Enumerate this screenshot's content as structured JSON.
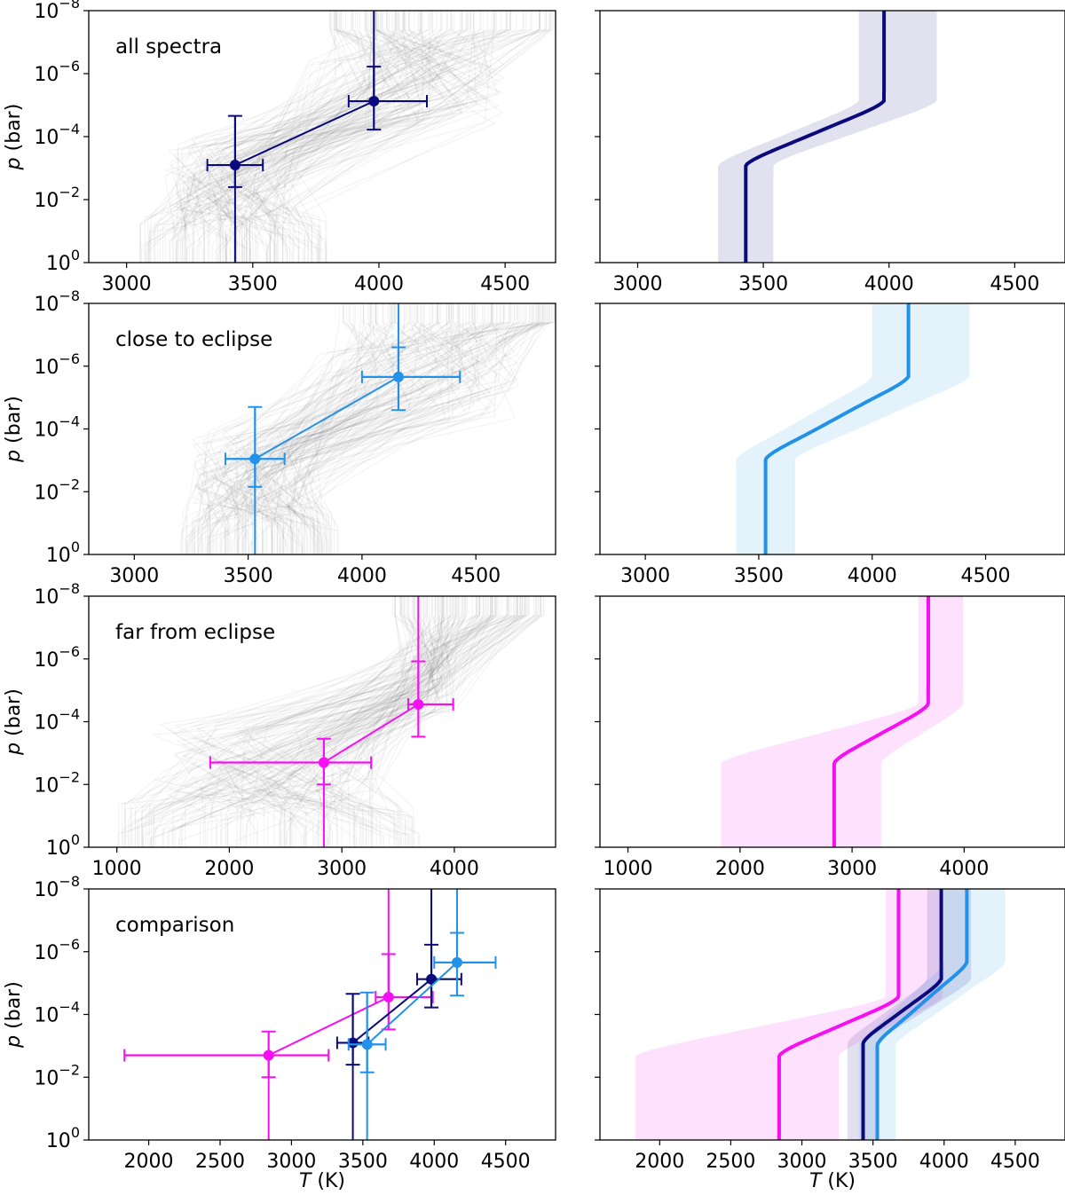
{
  "colors": {
    "all": "#0a0a7d",
    "close": "#2191ea",
    "far": "#f60ff2",
    "samples": "#444444"
  },
  "axis_labels": {
    "ylabel_var": "p",
    "ylabel_unit": " (bar)",
    "xlabel_var": "T",
    "xlabel_unit": " (K)"
  },
  "chart_data": [
    {
      "id": "panel-all-left",
      "type": "scatter",
      "annotation": "all spectra",
      "annotation_color": "all",
      "yscale": "log",
      "ylim": [
        1,
        1e-08
      ],
      "yticks": [
        "10^-8",
        "10^-6",
        "10^-4",
        "10^-2",
        "10^0"
      ],
      "ytick_labels_visible": true,
      "xlim": [
        2850,
        4700
      ],
      "xticks": [
        3000,
        3500,
        4000,
        4500
      ],
      "samples": {
        "shown": true,
        "bottom_T": [
          3050,
          3800
        ],
        "top_T": [
          3800,
          4700
        ],
        "T_mid_low": [
          3150,
          3700
        ],
        "T_mid_high": [
          3700,
          4500
        ]
      },
      "series": [
        {
          "color": "all",
          "points": [
            {
              "T": 3430,
              "T_lo": 3320,
              "T_hi": 3540,
              "p": 0.0008,
              "p_lo": 0.004,
              "p_hi": 2.2e-05
            },
            {
              "T": 3980,
              "T_lo": 3880,
              "T_hi": 4190,
              "p": 7.5e-06,
              "p_lo": 6e-05,
              "p_hi": 6e-07
            }
          ]
        }
      ]
    },
    {
      "id": "panel-all-right",
      "type": "area",
      "yscale": "log",
      "ylim": [
        1,
        1e-08
      ],
      "ytick_labels_visible": false,
      "xlim": [
        2850,
        4700
      ],
      "xticks": [
        3000,
        3500,
        4000,
        4500
      ],
      "profiles": [
        {
          "color": "all",
          "T_bottom": 3430,
          "T_top": 3980,
          "p1": 0.0008,
          "p2": 7.5e-06,
          "band_bottom": [
            3320,
            3540
          ],
          "band_top": [
            3880,
            4190
          ]
        }
      ]
    },
    {
      "id": "panel-close-left",
      "type": "scatter",
      "annotation": "close to eclipse",
      "annotation_color": "close",
      "yscale": "log",
      "ylim": [
        1,
        1e-08
      ],
      "yticks": [
        "10^-8",
        "10^-6",
        "10^-4",
        "10^-2",
        "10^0"
      ],
      "ytick_labels_visible": true,
      "xlim": [
        2800,
        4850
      ],
      "xticks": [
        3000,
        3500,
        4000,
        4500
      ],
      "samples": {
        "shown": true,
        "bottom_T": [
          3200,
          3900
        ],
        "top_T": [
          3900,
          4850
        ],
        "T_mid_low": [
          3250,
          3800
        ],
        "T_mid_high": [
          3800,
          4700
        ]
      },
      "series": [
        {
          "color": "close",
          "points": [
            {
              "T": 3530,
              "T_lo": 3400,
              "T_hi": 3660,
              "p": 0.0009,
              "p_lo": 0.007,
              "p_hi": 2e-05
            },
            {
              "T": 4160,
              "T_lo": 4000,
              "T_hi": 4430,
              "p": 2.2e-06,
              "p_lo": 2.5e-05,
              "p_hi": 2.5e-07
            }
          ]
        }
      ]
    },
    {
      "id": "panel-close-right",
      "type": "area",
      "yscale": "log",
      "ylim": [
        1,
        1e-08
      ],
      "ytick_labels_visible": false,
      "xlim": [
        2800,
        4850
      ],
      "xticks": [
        3000,
        3500,
        4000,
        4500
      ],
      "profiles": [
        {
          "color": "close",
          "T_bottom": 3530,
          "T_top": 4160,
          "p1": 0.0009,
          "p2": 2.2e-06,
          "band_bottom": [
            3400,
            3660
          ],
          "band_top": [
            4000,
            4430
          ]
        }
      ]
    },
    {
      "id": "panel-far-left",
      "type": "scatter",
      "annotation": "far from eclipse",
      "annotation_color": "far",
      "yscale": "log",
      "ylim": [
        1,
        1e-08
      ],
      "yticks": [
        "10^-8",
        "10^-6",
        "10^-4",
        "10^-2",
        "10^0"
      ],
      "ytick_labels_visible": true,
      "xlim": [
        750,
        4900
      ],
      "xticks": [
        1000,
        2000,
        3000,
        4000
      ],
      "samples": {
        "shown": true,
        "bottom_T": [
          1000,
          3700
        ],
        "top_T": [
          3450,
          4800
        ],
        "T_mid_low": [
          1300,
          3400
        ],
        "T_mid_high": [
          3500,
          4000
        ]
      },
      "series": [
        {
          "color": "far",
          "points": [
            {
              "T": 2840,
              "T_lo": 1830,
              "T_hi": 3260,
              "p": 0.002,
              "p_lo": 0.01,
              "p_hi": 0.00035
            },
            {
              "T": 3680,
              "T_lo": 3590,
              "T_hi": 3990,
              "p": 2.8e-05,
              "p_lo": 0.0003,
              "p_hi": 1.2e-06
            }
          ]
        }
      ]
    },
    {
      "id": "panel-far-right",
      "type": "area",
      "yscale": "log",
      "ylim": [
        1,
        1e-08
      ],
      "ytick_labels_visible": false,
      "xlim": [
        750,
        4900
      ],
      "xticks": [
        1000,
        2000,
        3000,
        4000
      ],
      "profiles": [
        {
          "color": "far",
          "T_bottom": 2840,
          "T_top": 3680,
          "p1": 0.002,
          "p2": 2.8e-05,
          "band_bottom": [
            1830,
            3260
          ],
          "band_top": [
            3590,
            3990
          ]
        }
      ]
    },
    {
      "id": "panel-cmp-left",
      "type": "scatter",
      "annotation": "comparison",
      "annotation_color": "#000000",
      "yscale": "log",
      "ylim": [
        1,
        1e-08
      ],
      "yticks": [
        "10^-8",
        "10^-6",
        "10^-4",
        "10^-2",
        "10^0"
      ],
      "ytick_labels_visible": true,
      "xlim": [
        1580,
        4850
      ],
      "xticks": [
        2000,
        2500,
        3000,
        3500,
        4000,
        4500
      ],
      "samples": {
        "shown": false
      },
      "series": [
        {
          "color": "far",
          "points": [
            {
              "T": 2840,
              "T_lo": 1830,
              "T_hi": 3260,
              "p": 0.002,
              "p_lo": 0.01,
              "p_hi": 0.00035
            },
            {
              "T": 3680,
              "T_lo": 3590,
              "T_hi": 3990,
              "p": 2.8e-05,
              "p_lo": 0.0003,
              "p_hi": 1.2e-06
            }
          ]
        },
        {
          "color": "all",
          "points": [
            {
              "T": 3430,
              "T_lo": 3320,
              "T_hi": 3540,
              "p": 0.0008,
              "p_lo": 0.004,
              "p_hi": 2.2e-05
            },
            {
              "T": 3980,
              "T_lo": 3880,
              "T_hi": 4190,
              "p": 7.5e-06,
              "p_lo": 6e-05,
              "p_hi": 6e-07
            }
          ]
        },
        {
          "color": "close",
          "points": [
            {
              "T": 3530,
              "T_lo": 3400,
              "T_hi": 3660,
              "p": 0.0009,
              "p_lo": 0.007,
              "p_hi": 2e-05
            },
            {
              "T": 4160,
              "T_lo": 4000,
              "T_hi": 4430,
              "p": 2.2e-06,
              "p_lo": 2.5e-05,
              "p_hi": 2.5e-07
            }
          ]
        }
      ]
    },
    {
      "id": "panel-cmp-right",
      "type": "area",
      "yscale": "log",
      "ylim": [
        1,
        1e-08
      ],
      "ytick_labels_visible": false,
      "xlim": [
        1580,
        4850
      ],
      "xticks": [
        2000,
        2500,
        3000,
        3500,
        4000,
        4500
      ],
      "profiles": [
        {
          "color": "far",
          "T_bottom": 2840,
          "T_top": 3680,
          "p1": 0.002,
          "p2": 2.8e-05,
          "band_bottom": [
            1830,
            3260
          ],
          "band_top": [
            3590,
            3990
          ]
        },
        {
          "color": "all",
          "T_bottom": 3430,
          "T_top": 3980,
          "p1": 0.0008,
          "p2": 7.5e-06,
          "band_bottom": [
            3320,
            3540
          ],
          "band_top": [
            3880,
            4190
          ]
        },
        {
          "color": "close",
          "T_bottom": 3530,
          "T_top": 4160,
          "p1": 0.0009,
          "p2": 2.2e-06,
          "band_bottom": [
            3400,
            3660
          ],
          "band_top": [
            4000,
            4430
          ]
        }
      ]
    }
  ]
}
